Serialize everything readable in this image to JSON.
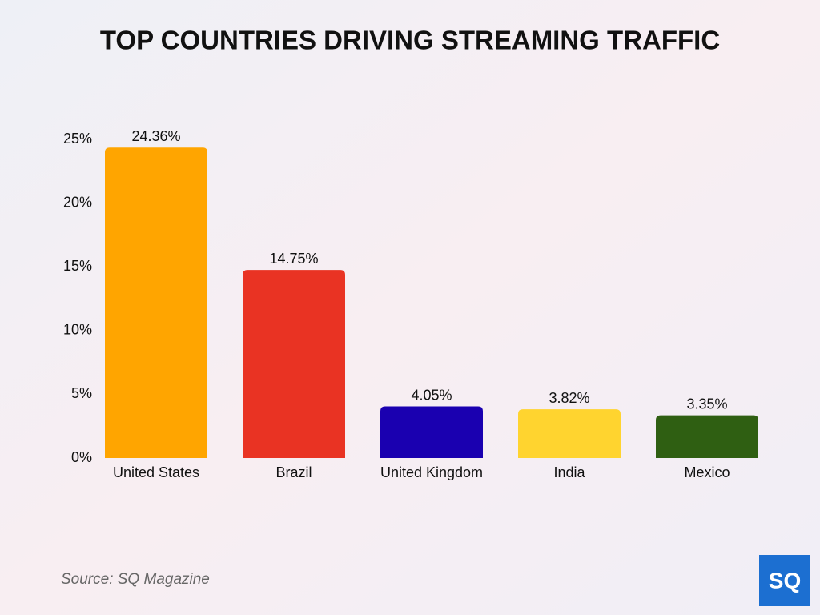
{
  "chart_data": {
    "type": "bar",
    "title": "TOP COUNTRIES DRIVING STREAMING TRAFFIC",
    "categories": [
      "United States",
      "Brazil",
      "United Kingdom",
      "India",
      "Mexico"
    ],
    "values": [
      24.36,
      14.75,
      4.05,
      3.82,
      3.35
    ],
    "value_labels": [
      "24.36%",
      "14.75%",
      "4.05%",
      "3.82%",
      "3.35%"
    ],
    "colors": [
      "#ffa500",
      "#e93323",
      "#1a00b0",
      "#ffd42f",
      "#2f5f12"
    ],
    "ylim": [
      0,
      25
    ],
    "yticks": [
      {
        "value": 0,
        "label": "0%"
      },
      {
        "value": 5,
        "label": "5%"
      },
      {
        "value": 10,
        "label": "10%"
      },
      {
        "value": 15,
        "label": "15%"
      },
      {
        "value": 20,
        "label": "20%"
      },
      {
        "value": 25,
        "label": "25%"
      }
    ],
    "grid": false,
    "source": "Source: SQ Magazine",
    "logo": "SQ"
  }
}
